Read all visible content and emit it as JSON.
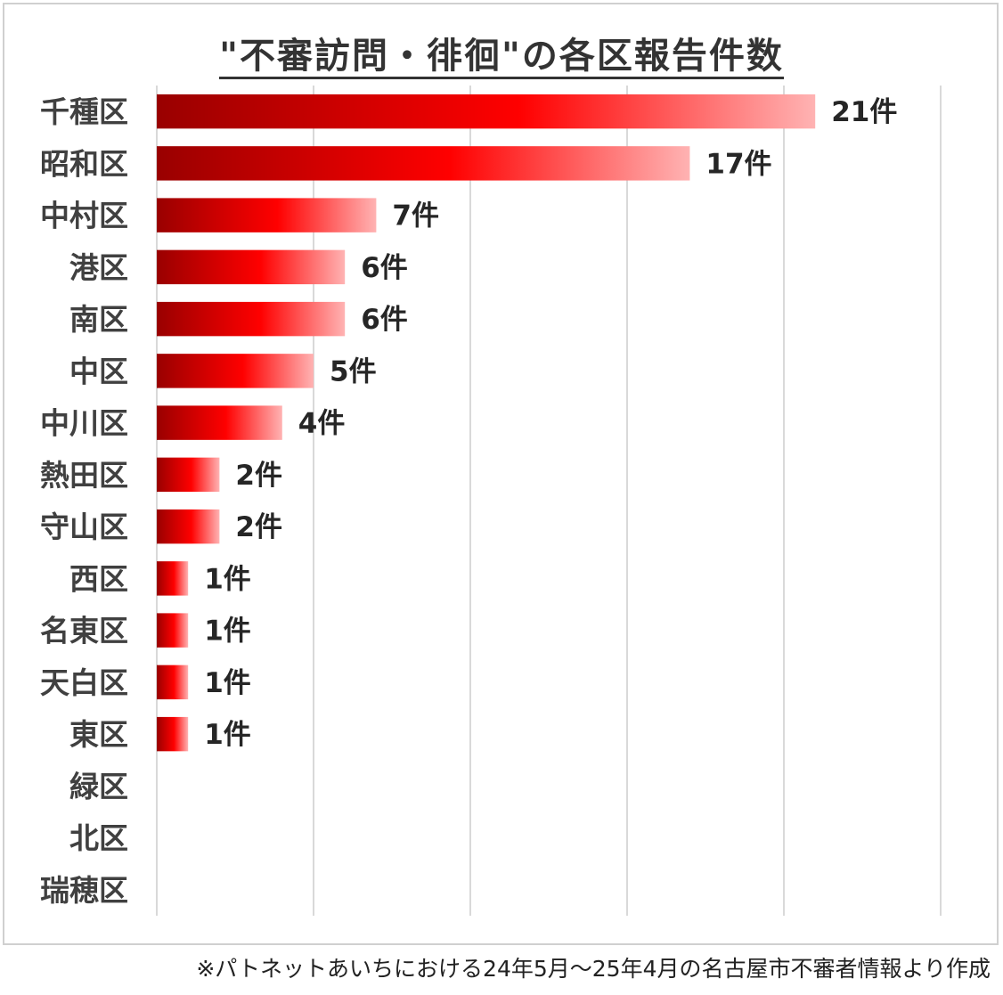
{
  "chart_data": {
    "type": "bar",
    "orientation": "horizontal",
    "title": "\"不審訪問・徘徊\"の各区報告件数",
    "categories": [
      "千種区",
      "昭和区",
      "中村区",
      "港区",
      "南区",
      "中区",
      "中川区",
      "熱田区",
      "守山区",
      "西区",
      "名東区",
      "天白区",
      "東区",
      "緑区",
      "北区",
      "瑞穂区"
    ],
    "values": [
      21,
      17,
      7,
      6,
      6,
      5,
      4,
      2,
      2,
      1,
      1,
      1,
      1,
      0,
      0,
      0
    ],
    "value_suffix": "件",
    "xlim": [
      0,
      25
    ],
    "grid": true,
    "legend": "none",
    "colors": {
      "bar_dark": "#990000",
      "bar_mid": "#ff0000",
      "bar_light": "#ffb3b3",
      "grid": "#d9d9d9"
    }
  },
  "footnote": "※パトネットあいちにおける24年5月～25年4月の名古屋市不審者情報より作成"
}
